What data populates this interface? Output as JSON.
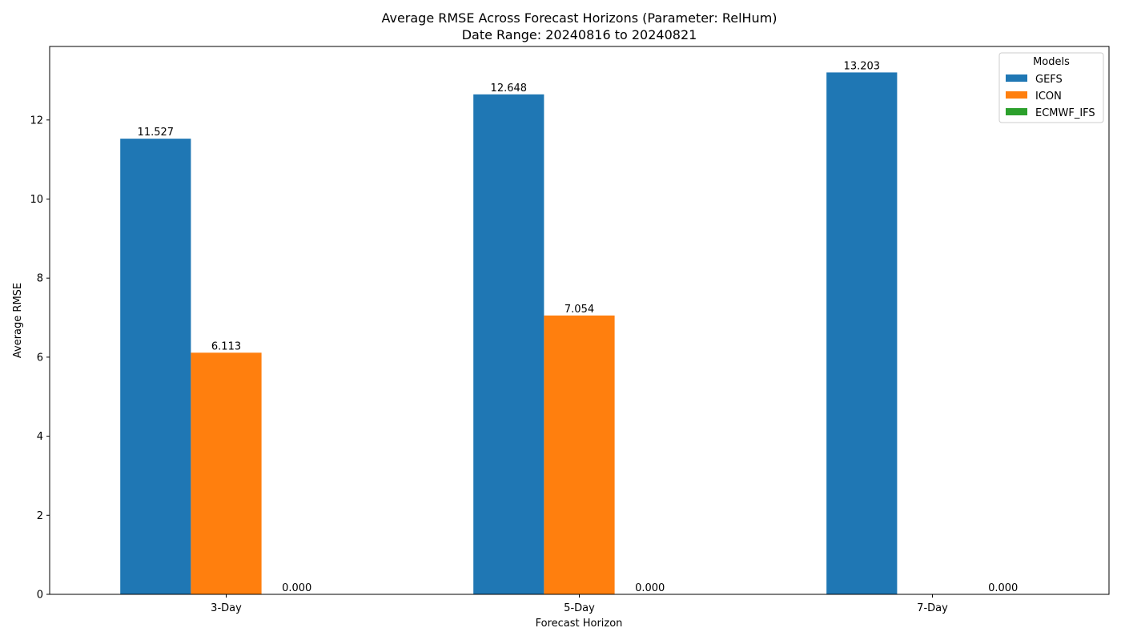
{
  "chart_data": {
    "type": "bar",
    "title_lines": [
      "Average RMSE Across Forecast Horizons (Parameter: RelHum)",
      "Date Range: 20240816 to 20240821"
    ],
    "xlabel": "Forecast Horizon",
    "ylabel": "Average RMSE",
    "categories": [
      "3-Day",
      "5-Day",
      "7-Day"
    ],
    "ylim": [
      0,
      13.86
    ],
    "yticks": [
      0,
      2,
      4,
      6,
      8,
      10,
      12
    ],
    "grid": false,
    "legend": {
      "title": "Models",
      "placement": "top-right"
    },
    "series": [
      {
        "name": "GEFS",
        "color": "#1f77b4",
        "values": [
          11.527,
          12.648,
          13.203
        ],
        "labels": [
          "11.527",
          "12.648",
          "13.203"
        ]
      },
      {
        "name": "ICON",
        "color": "#ff7f0e",
        "values": [
          6.113,
          7.054,
          null
        ],
        "labels": [
          "6.113",
          "7.054",
          ""
        ]
      },
      {
        "name": "ECMWF_IFS",
        "color": "#2ca02c",
        "values": [
          0,
          0,
          0
        ],
        "labels": [
          "0.000",
          "0.000",
          "0.000"
        ]
      }
    ]
  }
}
